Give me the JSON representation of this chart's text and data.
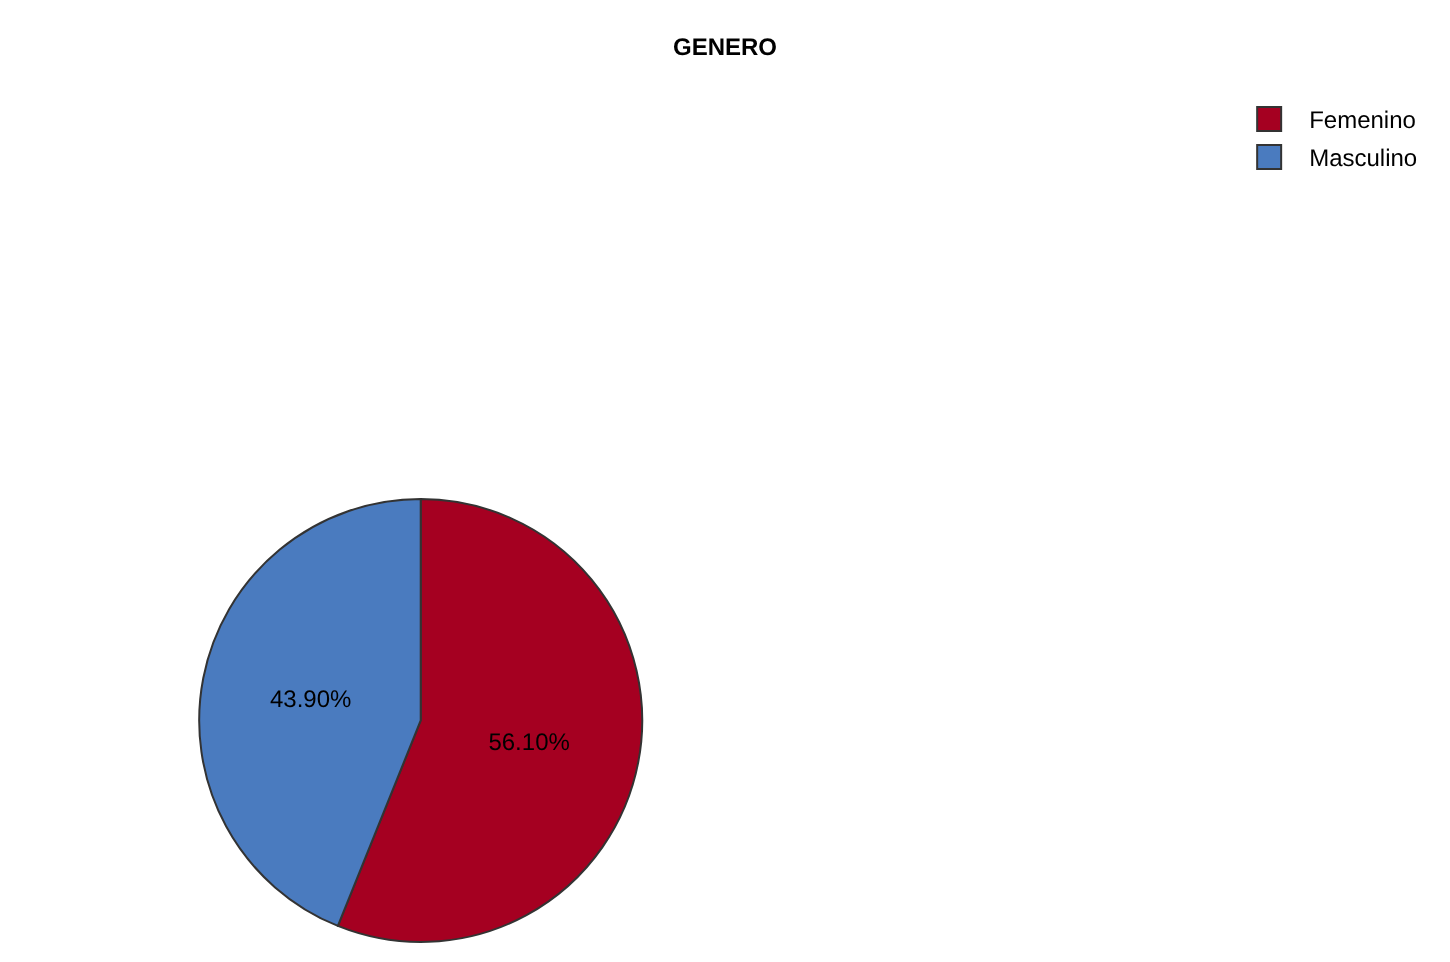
{
  "chart_data": {
    "type": "pie",
    "title": "GENERO",
    "categories": [
      "Femenino",
      "Masculino"
    ],
    "values": [
      56.1,
      43.9
    ],
    "colors": [
      "#a50021",
      "#4a7bbf"
    ],
    "value_labels": [
      "56.10%",
      "43.90%"
    ],
    "legend": "top right"
  }
}
